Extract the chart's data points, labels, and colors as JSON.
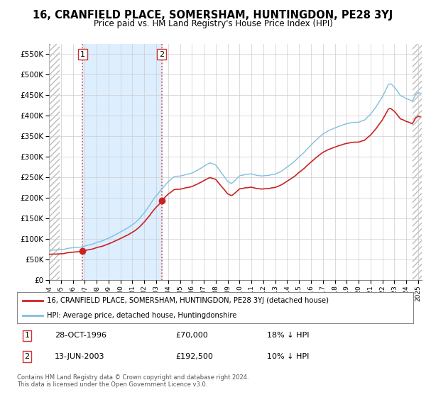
{
  "title": "16, CRANFIELD PLACE, SOMERSHAM, HUNTINGDON, PE28 3YJ",
  "subtitle": "Price paid vs. HM Land Registry's House Price Index (HPI)",
  "sale1_date_dec": 1996.83,
  "sale1_price": 70000,
  "sale2_date_dec": 2003.45,
  "sale2_price": 192500,
  "legend_line1": "16, CRANFIELD PLACE, SOMERSHAM, HUNTINGDON, PE28 3YJ (detached house)",
  "legend_line2": "HPI: Average price, detached house, Huntingdonshire",
  "footer1": "Contains HM Land Registry data © Crown copyright and database right 2024.",
  "footer2": "This data is licensed under the Open Government Licence v3.0.",
  "hpi_color": "#7fbfdf",
  "price_color": "#cc2222",
  "shade_color": "#ddeeff",
  "ylim_max": 575000,
  "ylim_min": 0,
  "xmin": 1994.0,
  "xmax": 2025.3,
  "hatch_left_end": 1994.92,
  "hatch_right_start": 2024.5
}
